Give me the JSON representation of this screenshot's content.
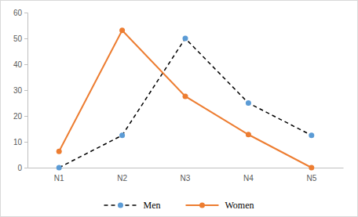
{
  "chart_data": {
    "type": "line",
    "categories": [
      "N1",
      "N2",
      "N3",
      "N4",
      "N5"
    ],
    "series": [
      {
        "name": "Men",
        "color": "#5b9bd5",
        "line_style": "dashed",
        "marker": "circle",
        "values": [
          0,
          12.5,
          50,
          25,
          12.5
        ]
      },
      {
        "name": "Women",
        "color": "#ed7d31",
        "line_style": "solid",
        "marker": "circle",
        "values": [
          6.3,
          53.1,
          27.6,
          12.8,
          0
        ]
      }
    ],
    "ylim": [
      0,
      60
    ],
    "yticks": [
      0,
      10,
      20,
      30,
      40,
      50,
      60
    ],
    "grid": false,
    "legend": "bottom"
  }
}
